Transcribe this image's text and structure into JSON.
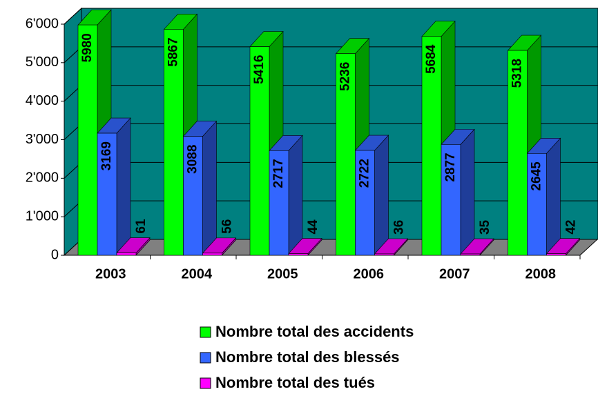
{
  "chart_data": {
    "type": "bar3d",
    "categories": [
      "2003",
      "2004",
      "2005",
      "2006",
      "2007",
      "2008"
    ],
    "series": [
      {
        "name": "Nombre total des accidents",
        "color": "#00ff00",
        "values": [
          5980,
          5867,
          5416,
          5236,
          5684,
          5318
        ]
      },
      {
        "name": "Nombre total des blessés",
        "color": "#3366ff",
        "values": [
          3169,
          3088,
          2717,
          2722,
          2877,
          2645
        ]
      },
      {
        "name": "Nombre total des tués",
        "color": "#ff00ff",
        "values": [
          61,
          56,
          44,
          36,
          35,
          42
        ]
      }
    ],
    "ylim": [
      0,
      6000
    ],
    "yticks": [
      0,
      {
        "value": 1000,
        "label": "1'000"
      },
      {
        "value": 2000,
        "label": "2'000"
      },
      {
        "value": 3000,
        "label": "3'000"
      },
      {
        "value": 4000,
        "label": "4'000"
      },
      {
        "value": 5000,
        "label": "5'000"
      },
      {
        "value": 6000,
        "label": "6'000"
      }
    ],
    "grid": true,
    "wall_color": "#008080",
    "floor_color": "#808080"
  }
}
